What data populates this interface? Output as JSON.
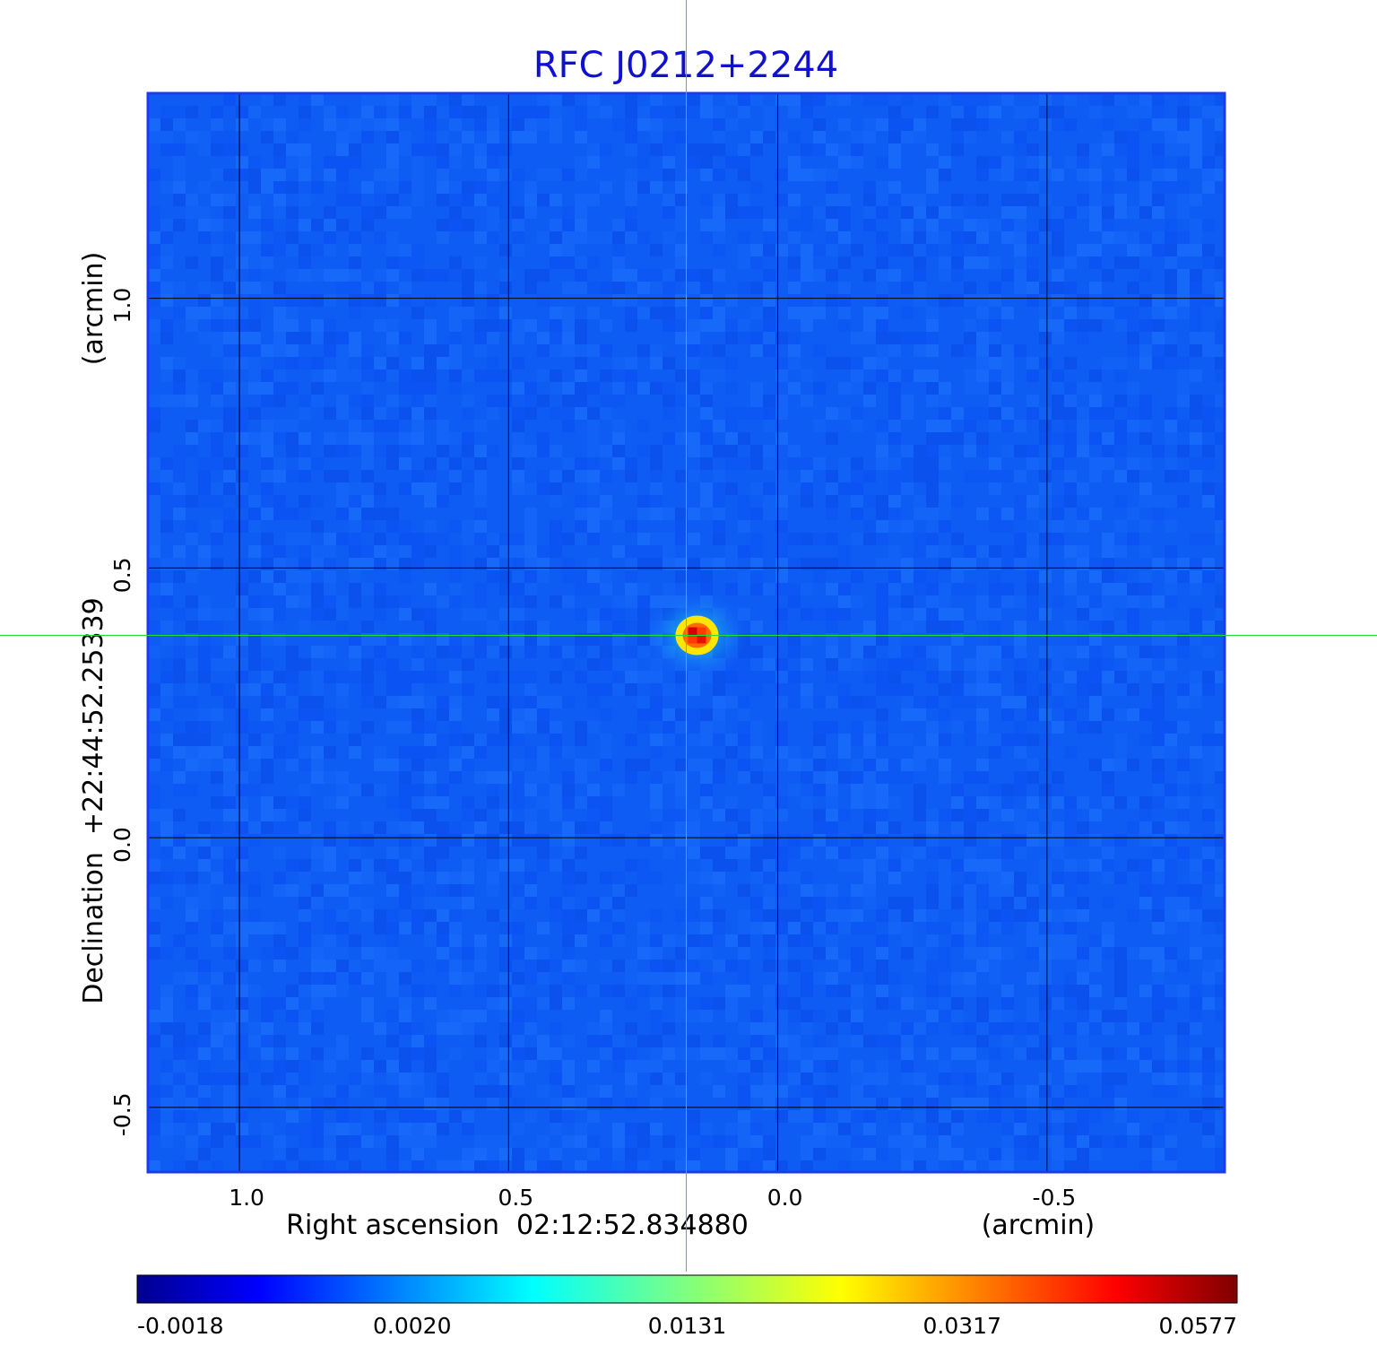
{
  "chart_data": {
    "type": "heatmap",
    "title": "RFC J0212+2244",
    "xlabel": "Right ascension  02:12:52.834880",
    "xunit": "(arcmin)",
    "ylabel": "Declination  +22:44:52.25339",
    "yunit": "(arcmin)",
    "x_axis_reversed": true,
    "xlim": [
      1.17,
      -0.83
    ],
    "ylim": [
      -0.62,
      1.38
    ],
    "x_ticks": [
      1.0,
      0.5,
      0.0,
      -0.5
    ],
    "x_tick_labels": [
      "1.0",
      "0.5",
      "0.0",
      "-0.5"
    ],
    "y_ticks": [
      1.0,
      0.5,
      0.0,
      -0.5
    ],
    "y_tick_labels": [
      "1.0",
      "0.5",
      "0.0",
      "-0.5"
    ],
    "grid": true,
    "crosshair": {
      "x": 0.17,
      "y": 0.375
    },
    "source_peak": {
      "x": 0.15,
      "y": 0.375,
      "value": 0.0577
    },
    "colorbar": {
      "colormap": "jet",
      "tick_labels": [
        "-0.0018",
        "0.0020",
        "0.0131",
        "0.0317",
        "0.0577"
      ],
      "range": [
        -0.0018,
        0.0577
      ]
    }
  },
  "colors": {
    "title": "#1010d0",
    "frame": "#1a3cf0",
    "background_map": "#0f5cf5",
    "grid": "#000000",
    "crosshair": "#22e030"
  }
}
